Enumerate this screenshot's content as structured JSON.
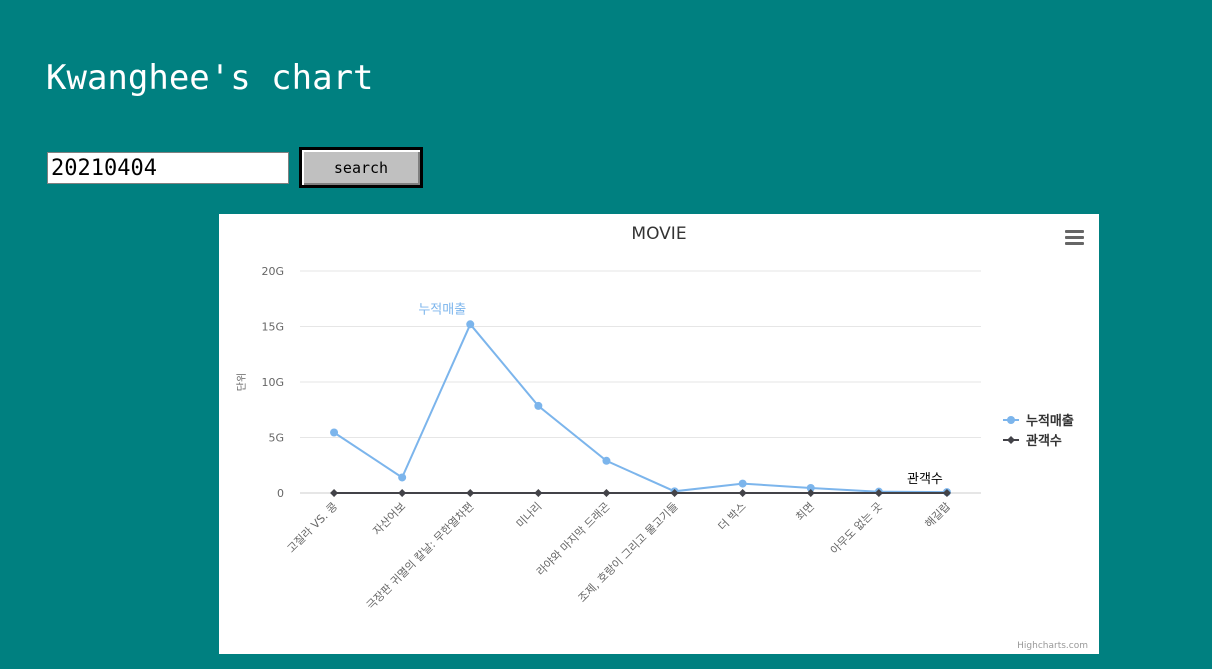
{
  "page": {
    "title": "Kwanghee's chart",
    "date_value": "20210404",
    "search_label": "search"
  },
  "credits": "Highcharts.com",
  "colors": {
    "background": "#008080",
    "series_sales": "#7cb5ec",
    "series_audience": "#434348"
  },
  "icons": {
    "menu": "hamburger-menu-icon"
  },
  "chart_data": {
    "type": "line",
    "title": "MOVIE",
    "ylabel": "단위",
    "ylim": [
      0,
      20000000000
    ],
    "yticks": [
      {
        "value": 0,
        "label": "0"
      },
      {
        "value": 5000000000,
        "label": "5G"
      },
      {
        "value": 10000000000,
        "label": "10G"
      },
      {
        "value": 15000000000,
        "label": "15G"
      },
      {
        "value": 20000000000,
        "label": "20G"
      }
    ],
    "grid": true,
    "legend_position": "right",
    "categories": [
      "고질라 VS. 콩",
      "자산어보",
      "극장판 귀멸의 칼날: 무한열차편",
      "미나리",
      "라야와 마지막 드래곤",
      "조제, 호랑이 그리고 물고기들",
      "더 박스",
      "최면",
      "아무도 없는 곳",
      "해길랍"
    ],
    "series": [
      {
        "name": "누적매출",
        "color": "#7cb5ec",
        "marker": "circle",
        "values": [
          5450000000,
          1400000000,
          15200000000,
          7850000000,
          2900000000,
          150000000,
          850000000,
          450000000,
          120000000,
          80000000
        ]
      },
      {
        "name": "관객수",
        "color": "#434348",
        "marker": "diamond",
        "values": [
          0,
          0,
          0,
          0,
          0,
          0,
          0,
          0,
          0,
          0
        ]
      }
    ]
  }
}
